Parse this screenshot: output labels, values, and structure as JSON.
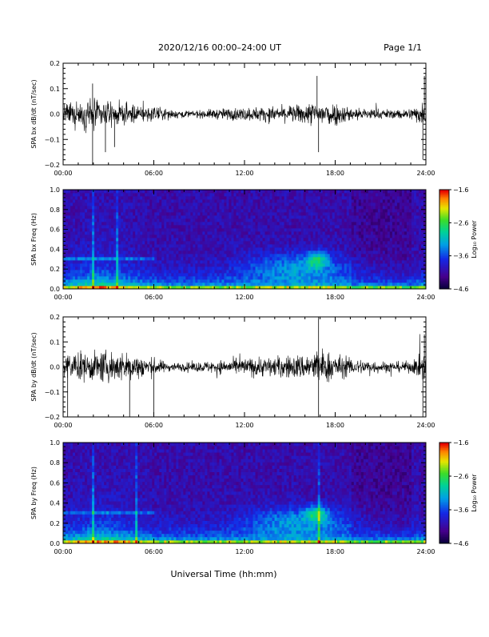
{
  "header": {
    "title": "2020/12/16  00:00–24:00 UT",
    "page": "Page 1/1"
  },
  "footer": {
    "xlabel": "Universal Time (hh:mm)"
  },
  "colors": {
    "trace": "#000000",
    "background": "#ffffff"
  },
  "chart_data": [
    {
      "type": "line",
      "ylabel": "SPA bx dB/dt (nT/sec)",
      "xlim": [
        0,
        24
      ],
      "ylim": [
        -0.2,
        0.2
      ],
      "x_ticks": [
        "00:00",
        "06:00",
        "12:00",
        "18:00",
        "24:00"
      ],
      "y_ticks": [
        "−0.2",
        "−0.1",
        "0.0",
        "0.1",
        "0.2"
      ],
      "envelope": {
        "x_hours": [
          0,
          1,
          2,
          3,
          4,
          5,
          6,
          7,
          8,
          9,
          10,
          11,
          12,
          13,
          14,
          15,
          16,
          17,
          18,
          19,
          20,
          21,
          22,
          23,
          24
        ],
        "amplitude": [
          0.07,
          0.08,
          0.11,
          0.07,
          0.07,
          0.06,
          0.05,
          0.035,
          0.025,
          0.025,
          0.035,
          0.04,
          0.045,
          0.05,
          0.05,
          0.055,
          0.07,
          0.09,
          0.08,
          0.05,
          0.04,
          0.035,
          0.03,
          0.04,
          0.09
        ]
      }
    },
    {
      "type": "heatmap",
      "ylabel": "SPA bx Freq (Hz)",
      "xlim": [
        0,
        24
      ],
      "ylim": [
        0,
        1.0
      ],
      "x_ticks": [
        "00:00",
        "06:00",
        "12:00",
        "18:00",
        "24:00"
      ],
      "y_ticks": [
        "0.0",
        "0.2",
        "0.4",
        "0.6",
        "0.8",
        "1.0"
      ],
      "colorbar": {
        "label": "Log₁₀ Power",
        "range": [
          -4.6,
          -1.6
        ],
        "ticks": [
          "−4.6",
          "−3.6",
          "−2.6",
          "−1.6"
        ]
      }
    },
    {
      "type": "line",
      "ylabel": "SPA by dB/dt (nT/sec)",
      "xlim": [
        0,
        24
      ],
      "ylim": [
        -0.2,
        0.2
      ],
      "x_ticks": [
        "00:00",
        "06:00",
        "12:00",
        "18:00",
        "24:00"
      ],
      "y_ticks": [
        "−0.2",
        "−0.1",
        "0.0",
        "0.1",
        "0.2"
      ],
      "envelope": {
        "x_hours": [
          0,
          1,
          2,
          3,
          4,
          5,
          6,
          7,
          8,
          9,
          10,
          11,
          12,
          13,
          14,
          15,
          16,
          17,
          18,
          19,
          20,
          21,
          22,
          23,
          24
        ],
        "amplitude": [
          0.09,
          0.1,
          0.1,
          0.11,
          0.1,
          0.09,
          0.06,
          0.03,
          0.03,
          0.035,
          0.045,
          0.05,
          0.06,
          0.07,
          0.07,
          0.08,
          0.09,
          0.13,
          0.09,
          0.06,
          0.05,
          0.04,
          0.035,
          0.04,
          0.1
        ]
      }
    },
    {
      "type": "heatmap",
      "ylabel": "SPA by Freq (Hz)",
      "xlim": [
        0,
        24
      ],
      "ylim": [
        0,
        1.0
      ],
      "x_ticks": [
        "00:00",
        "06:00",
        "12:00",
        "18:00",
        "24:00"
      ],
      "y_ticks": [
        "0.0",
        "0.2",
        "0.4",
        "0.6",
        "0.8",
        "1.0"
      ],
      "colorbar": {
        "label": "Log₁₀ Power",
        "range": [
          -4.6,
          -1.6
        ],
        "ticks": [
          "−4.6",
          "−3.6",
          "−2.6",
          "−1.6"
        ]
      }
    }
  ]
}
